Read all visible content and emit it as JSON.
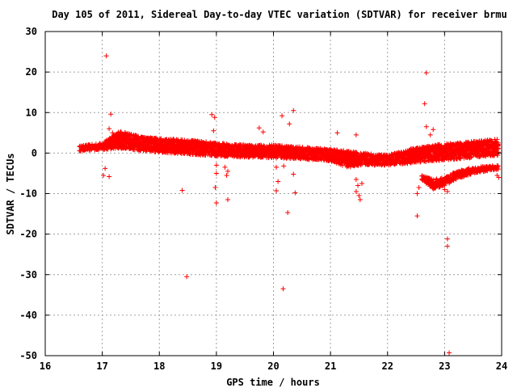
{
  "chart_data": {
    "type": "scatter",
    "title": "Day 105 of 2011, Sidereal Day-to-day VTEC variation (SDTVAR) for receiver brmu",
    "xlabel": "GPS time / hours",
    "ylabel": "SDTVAR / TECUs",
    "xlim": [
      16,
      24
    ],
    "ylim": [
      -50,
      30
    ],
    "xticks": [
      16,
      17,
      18,
      19,
      20,
      21,
      22,
      23,
      24
    ],
    "yticks": [
      30,
      20,
      10,
      0,
      -10,
      -20,
      -30,
      -40,
      -50
    ],
    "xtick_labels": [
      "16",
      "17",
      "18",
      "19",
      "20",
      "21",
      "22",
      "23",
      "24"
    ],
    "ytick_labels": [
      "30",
      "20",
      "10",
      "0",
      "-10",
      "-20",
      "-30",
      "-40",
      "-50"
    ],
    "grid": true,
    "marker": "+",
    "series_color": "#ff0000",
    "series": [
      {
        "name": "brmu",
        "bands": [
          {
            "x": [
              16.6,
              17.0,
              17.3,
              17.7,
              18.2,
              18.7,
              19.0,
              19.5,
              20.0,
              20.5,
              21.0,
              21.3,
              21.6,
              22.0,
              22.4,
              22.8,
              23.2,
              23.6,
              23.95
            ],
            "y_low": [
              0.5,
              0.8,
              1.2,
              0.5,
              0.0,
              -0.5,
              -0.8,
              -1.0,
              -1.2,
              -1.5,
              -2.0,
              -3.5,
              -3.0,
              -3.0,
              -2.5,
              -2.0,
              -1.5,
              -1.0,
              -0.5
            ],
            "y_high": [
              1.8,
              2.5,
              5.5,
              4.0,
              3.5,
              3.0,
              2.5,
              2.0,
              2.0,
              1.5,
              1.0,
              0.5,
              0.0,
              -0.5,
              1.0,
              2.0,
              2.5,
              3.0,
              3.5
            ]
          },
          {
            "x": [
              22.6,
              22.8,
              23.0,
              23.2,
              23.5,
              23.95
            ],
            "y_low": [
              -6.5,
              -9.0,
              -8.0,
              -6.5,
              -5.0,
              -4.0
            ],
            "y_high": [
              -5.5,
              -6.5,
              -6.0,
              -4.5,
              -3.5,
              -3.0
            ]
          }
        ],
        "points": [
          {
            "x": 17.07,
            "y": 24.0
          },
          {
            "x": 17.15,
            "y": 9.6
          },
          {
            "x": 17.12,
            "y": 6.0
          },
          {
            "x": 17.18,
            "y": 5.0
          },
          {
            "x": 17.05,
            "y": -3.8
          },
          {
            "x": 17.02,
            "y": -5.5
          },
          {
            "x": 17.12,
            "y": -5.8
          },
          {
            "x": 18.4,
            "y": -9.2
          },
          {
            "x": 18.48,
            "y": -30.5
          },
          {
            "x": 18.92,
            "y": 9.5
          },
          {
            "x": 18.97,
            "y": 8.8
          },
          {
            "x": 18.95,
            "y": 5.5
          },
          {
            "x": 19.0,
            "y": -3.0
          },
          {
            "x": 19.0,
            "y": -5.0
          },
          {
            "x": 18.98,
            "y": -8.5
          },
          {
            "x": 19.0,
            "y": -12.3
          },
          {
            "x": 19.15,
            "y": -3.5
          },
          {
            "x": 19.2,
            "y": -4.5
          },
          {
            "x": 19.18,
            "y": -5.5
          },
          {
            "x": 19.2,
            "y": -11.5
          },
          {
            "x": 19.75,
            "y": 6.2
          },
          {
            "x": 19.82,
            "y": 5.2
          },
          {
            "x": 20.15,
            "y": 9.2
          },
          {
            "x": 20.35,
            "y": 10.5
          },
          {
            "x": 20.28,
            "y": 7.2
          },
          {
            "x": 20.05,
            "y": -3.5
          },
          {
            "x": 20.18,
            "y": -3.2
          },
          {
            "x": 20.08,
            "y": -7.0
          },
          {
            "x": 20.05,
            "y": -9.3
          },
          {
            "x": 20.35,
            "y": -5.2
          },
          {
            "x": 20.38,
            "y": -9.8
          },
          {
            "x": 20.25,
            "y": -14.7
          },
          {
            "x": 20.17,
            "y": -33.5
          },
          {
            "x": 21.12,
            "y": 5.0
          },
          {
            "x": 21.45,
            "y": 4.5
          },
          {
            "x": 21.45,
            "y": -6.5
          },
          {
            "x": 21.48,
            "y": -8.0
          },
          {
            "x": 21.45,
            "y": -9.5
          },
          {
            "x": 21.5,
            "y": -10.5
          },
          {
            "x": 21.52,
            "y": -11.5
          },
          {
            "x": 21.55,
            "y": -7.5
          },
          {
            "x": 22.68,
            "y": 19.8
          },
          {
            "x": 22.65,
            "y": 12.2
          },
          {
            "x": 22.68,
            "y": 6.5
          },
          {
            "x": 22.8,
            "y": 5.8
          },
          {
            "x": 22.75,
            "y": 4.5
          },
          {
            "x": 22.55,
            "y": -8.5
          },
          {
            "x": 22.52,
            "y": -10.0
          },
          {
            "x": 22.52,
            "y": -15.5
          },
          {
            "x": 23.0,
            "y": -9.0
          },
          {
            "x": 23.05,
            "y": -9.5
          },
          {
            "x": 23.05,
            "y": -21.2
          },
          {
            "x": 23.05,
            "y": -23.0
          },
          {
            "x": 23.08,
            "y": -49.3
          },
          {
            "x": 23.9,
            "y": -4.0
          },
          {
            "x": 23.92,
            "y": -5.5
          },
          {
            "x": 23.95,
            "y": -6.0
          }
        ]
      }
    ]
  }
}
